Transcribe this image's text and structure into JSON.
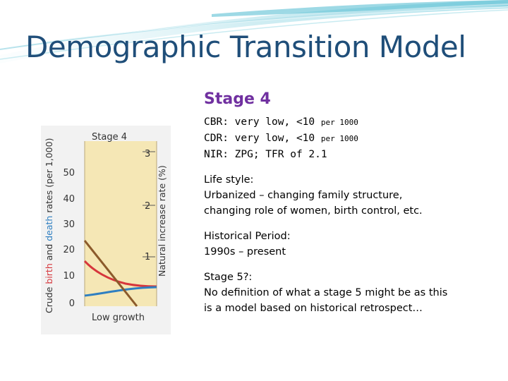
{
  "slide": {
    "title": "Demographic Transition Model"
  },
  "figure": {
    "stage_label": "Stage 4",
    "left_axis_label_prefix": "Crude ",
    "left_axis_label_birth": "birth",
    "left_axis_label_and": " and ",
    "left_axis_label_death": "death",
    "left_axis_label_suffix": " rates (per 1,000)",
    "right_axis_label": "Natural increase rate (%)",
    "left_ticks": [
      "50",
      "40",
      "30",
      "20",
      "10",
      "0"
    ],
    "right_ticks": [
      "3",
      "2",
      "1"
    ],
    "bottom_label": "Low growth",
    "colors": {
      "birth": "#d6363c",
      "death": "#2f7fc1",
      "natural_increase": "#8b5a2b",
      "panel": "#f5e7b5"
    }
  },
  "stage": {
    "heading": "Stage 4",
    "rates": [
      {
        "label": "CBR:",
        "value": "very low, <10",
        "unit": "per 1000"
      },
      {
        "label": "CDR:",
        "value": "very low, <10",
        "unit": "per 1000"
      },
      {
        "label": "NIR:",
        "value": "ZPG; TFR of 2.1",
        "unit": ""
      }
    ],
    "lifestyle": {
      "heading": "Life style:",
      "lines": [
        "Urbanized – changing family structure,",
        "changing role of women, birth control, etc."
      ]
    },
    "historical": {
      "heading": "Historical Period:",
      "lines": [
        "1990s – present"
      ]
    },
    "stage5": {
      "heading": "Stage 5?:",
      "lines": [
        "No definition of what a stage 5 might be as this",
        "is a model based on historical retrospect…"
      ]
    }
  }
}
